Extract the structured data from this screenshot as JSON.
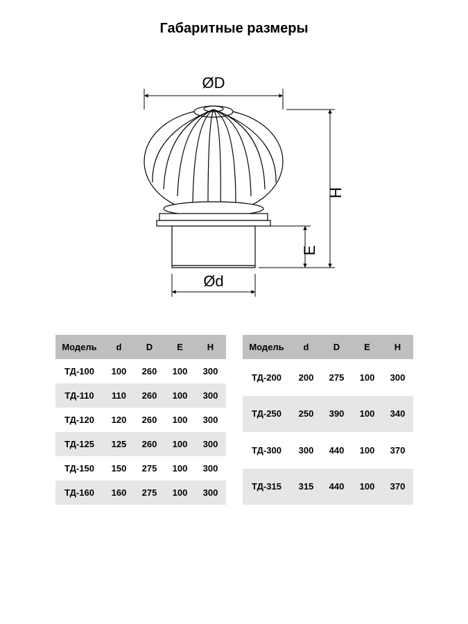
{
  "title": "Габаритные размеры",
  "diagram": {
    "labels": {
      "D_top": "ØD",
      "d_bottom": "Ød",
      "H_right": "H",
      "E_right": "E"
    },
    "stroke": "#000000",
    "stroke_width": 1.2,
    "fill": "#ffffff",
    "label_fontsize": 22
  },
  "tables": {
    "columns": [
      "Модель",
      "d",
      "D",
      "E",
      "H"
    ],
    "header_bg": "#bfbfbf",
    "alt_bg": "#e6e6e6",
    "row_bg": "#ffffff",
    "font_size": 13,
    "left": [
      {
        "model": "ТД-100",
        "d": "100",
        "D": "260",
        "E": "100",
        "H": "300"
      },
      {
        "model": "ТД-110",
        "d": "110",
        "D": "260",
        "E": "100",
        "H": "300"
      },
      {
        "model": "ТД-120",
        "d": "120",
        "D": "260",
        "E": "100",
        "H": "300"
      },
      {
        "model": "ТД-125",
        "d": "125",
        "D": "260",
        "E": "100",
        "H": "300"
      },
      {
        "model": "ТД-150",
        "d": "150",
        "D": "275",
        "E": "100",
        "H": "300"
      },
      {
        "model": "ТД-160",
        "d": "160",
        "D": "275",
        "E": "100",
        "H": "300"
      }
    ],
    "right": [
      {
        "model": "ТД-200",
        "d": "200",
        "D": "275",
        "E": "100",
        "H": "300"
      },
      {
        "model": "ТД-250",
        "d": "250",
        "D": "390",
        "E": "100",
        "H": "340"
      },
      {
        "model": "ТД-300",
        "d": "300",
        "D": "440",
        "E": "100",
        "H": "370"
      },
      {
        "model": "ТД-315",
        "d": "315",
        "D": "440",
        "E": "100",
        "H": "370"
      }
    ]
  }
}
